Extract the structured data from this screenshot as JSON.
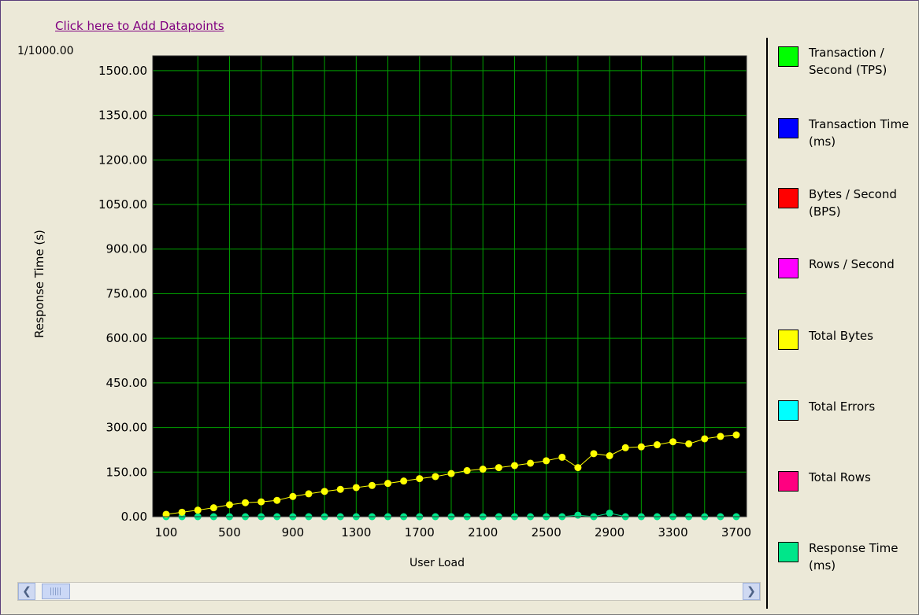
{
  "link": {
    "add_datapoints": "Click here to Add Datapoints"
  },
  "chart_data": {
    "type": "line",
    "scale_label": "1/1000.00",
    "ylabel": "Response Time (s)",
    "xlabel": "User Load",
    "ylim": [
      0,
      1500
    ],
    "xlim": [
      100,
      3700
    ],
    "yticks": [
      "0.00",
      "150.00",
      "300.00",
      "450.00",
      "600.00",
      "750.00",
      "900.00",
      "1050.00",
      "1200.00",
      "1350.00",
      "1500.00"
    ],
    "xticks": [
      "100",
      "500",
      "900",
      "1300",
      "1700",
      "2100",
      "2500",
      "2900",
      "3300",
      "3700"
    ],
    "grid": true,
    "legend_position": "right",
    "x": [
      100,
      200,
      300,
      400,
      500,
      600,
      700,
      800,
      900,
      1000,
      1100,
      1200,
      1300,
      1400,
      1500,
      1600,
      1700,
      1800,
      1900,
      2000,
      2100,
      2200,
      2300,
      2400,
      2500,
      2600,
      2700,
      2800,
      2900,
      3000,
      3100,
      3200,
      3300,
      3400,
      3500,
      3600,
      3700
    ],
    "series": [
      {
        "name": "Total Bytes",
        "color": "#ffff00",
        "values": [
          8,
          15,
          22,
          30,
          40,
          47,
          50,
          55,
          68,
          77,
          85,
          92,
          98,
          105,
          112,
          120,
          128,
          135,
          145,
          155,
          160,
          165,
          172,
          180,
          188,
          200,
          165,
          212,
          205,
          232,
          235,
          242,
          252,
          245,
          262,
          270,
          275
        ]
      },
      {
        "name": "Response Time (ms)",
        "color": "#00e68a",
        "values": [
          0,
          0,
          0,
          0,
          0,
          0,
          0,
          0,
          0,
          0,
          0,
          0,
          0,
          0,
          0,
          0,
          0,
          0,
          0,
          0,
          0,
          0,
          0,
          0,
          0,
          0,
          5,
          0,
          12,
          0,
          0,
          0,
          0,
          0,
          0,
          0,
          0
        ]
      },
      {
        "name": "Total Rows",
        "color": "#ff0080",
        "values": [
          0,
          0,
          0,
          0,
          0,
          0,
          0,
          0,
          0,
          0,
          0,
          0,
          0,
          0,
          0,
          0,
          0,
          0,
          0,
          0,
          0,
          0,
          0,
          0,
          0,
          0,
          0,
          0,
          0,
          0,
          0,
          0,
          0,
          0,
          0,
          0,
          0
        ]
      }
    ]
  },
  "legend": [
    {
      "label": "Transaction / Second (TPS)",
      "color": "#00ff00"
    },
    {
      "label": "Transaction Time (ms)",
      "color": "#0000ff"
    },
    {
      "label": "Bytes / Second (BPS)",
      "color": "#ff0000"
    },
    {
      "label": "Rows / Second",
      "color": "#ff00ff"
    },
    {
      "label": "Total Bytes",
      "color": "#ffff00"
    },
    {
      "label": "Total Errors",
      "color": "#00ffff"
    },
    {
      "label": "Total Rows",
      "color": "#ff0080"
    },
    {
      "label": "Response Time (ms)",
      "color": "#00e68a"
    }
  ],
  "scrollbar": {
    "left_icon": "chevron-left-icon",
    "right_icon": "chevron-right-icon"
  }
}
